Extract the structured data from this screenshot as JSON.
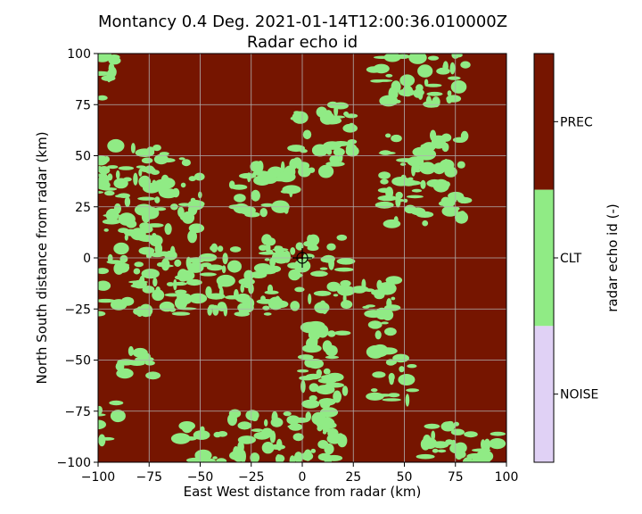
{
  "chart_data": {
    "type": "heatmap",
    "title": "Montancy 0.4 Deg. 2021-01-14T12:00:36.010000Z",
    "subtitle": "Radar echo id",
    "xlabel": "East West distance from radar (km)",
    "ylabel": "North South distance from radar (km)",
    "xlim": [
      -100,
      100
    ],
    "ylim": [
      -100,
      100
    ],
    "xticks": [
      -100,
      -75,
      -50,
      -25,
      0,
      25,
      50,
      75,
      100
    ],
    "yticks": [
      -100,
      -75,
      -50,
      -25,
      0,
      25,
      50,
      75,
      100
    ],
    "xtick_labels": [
      "−100",
      "−75",
      "−50",
      "−25",
      "0",
      "25",
      "50",
      "75",
      "100"
    ],
    "ytick_labels": [
      "−100",
      "−75",
      "−50",
      "−25",
      "0",
      "25",
      "50",
      "75",
      "100"
    ],
    "grid": true,
    "radar_location": [
      0,
      0
    ],
    "colorbar": {
      "label": "radar echo id (-)",
      "categories": [
        {
          "value": 1,
          "label": "NOISE",
          "color": "#e0d1f5"
        },
        {
          "value": 2,
          "label": "CLT",
          "color": "#90eb85"
        },
        {
          "value": 3,
          "label": "PREC",
          "color": "#761500"
        }
      ]
    },
    "background_class": "PREC",
    "clt_regions": [
      {
        "x": [
          -100,
          -88
        ],
        "y": [
          78,
          100
        ]
      },
      {
        "x": [
          -100,
          -48
        ],
        "y": [
          8,
          55
        ]
      },
      {
        "x": [
          -100,
          -15
        ],
        "y": [
          -28,
          5
        ]
      },
      {
        "x": [
          -100,
          -90
        ],
        "y": [
          -90,
          -70
        ]
      },
      {
        "x": [
          -35,
          -5
        ],
        "y": [
          18,
          45
        ]
      },
      {
        "x": [
          -5,
          25
        ],
        "y": [
          40,
          75
        ]
      },
      {
        "x": [
          -18,
          22
        ],
        "y": [
          -25,
          10
        ]
      },
      {
        "x": [
          25,
          45
        ],
        "y": [
          -40,
          -10
        ]
      },
      {
        "x": [
          35,
          80
        ],
        "y": [
          75,
          100
        ]
      },
      {
        "x": [
          40,
          80
        ],
        "y": [
          15,
          60
        ]
      },
      {
        "x": [
          35,
          55
        ],
        "y": [
          -70,
          -45
        ]
      },
      {
        "x": [
          0,
          20
        ],
        "y": [
          -60,
          -20
        ]
      },
      {
        "x": [
          0,
          22
        ],
        "y": [
          -100,
          -60
        ]
      },
      {
        "x": [
          -35,
          0
        ],
        "y": [
          -100,
          -75
        ]
      },
      {
        "x": [
          -60,
          -38
        ],
        "y": [
          -100,
          -82
        ]
      },
      {
        "x": [
          60,
          100
        ],
        "y": [
          -100,
          -80
        ]
      },
      {
        "x": [
          -90,
          -70
        ],
        "y": [
          -60,
          -45
        ]
      }
    ]
  }
}
